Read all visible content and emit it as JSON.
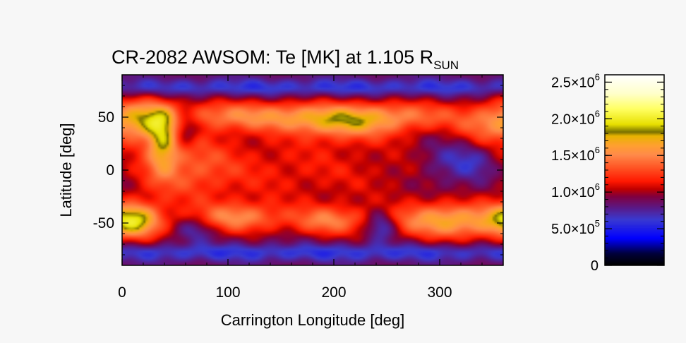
{
  "chart_data": {
    "type": "heatmap",
    "title": {
      "main": "CR-2082 AWSOM: Te [MK] at 1.105 R",
      "subscript": "SUN"
    },
    "xlabel": "Carrington Longitude [deg]",
    "ylabel": "Latitude [deg]",
    "xlim": [
      0,
      360
    ],
    "ylim": [
      -90,
      90
    ],
    "x_ticks": [
      {
        "value": 0,
        "label": "0"
      },
      {
        "value": 100,
        "label": "100"
      },
      {
        "value": 200,
        "label": "200"
      },
      {
        "value": 300,
        "label": "300"
      }
    ],
    "y_ticks": [
      {
        "value": 50,
        "label": "50"
      },
      {
        "value": 0,
        "label": "0"
      },
      {
        "value": -50,
        "label": "-50"
      }
    ],
    "colorbar": {
      "range": [
        0,
        2600000
      ],
      "ticks": [
        {
          "value": 2500000,
          "mantissa": "2.5",
          "exp": "6"
        },
        {
          "value": 2000000,
          "mantissa": "2.0",
          "exp": "6"
        },
        {
          "value": 1500000,
          "mantissa": "1.5",
          "exp": "6"
        },
        {
          "value": 1000000,
          "mantissa": "1.0",
          "exp": "6"
        },
        {
          "value": 500000,
          "mantissa": "5.0",
          "exp": "5"
        },
        {
          "value": 0,
          "mantissa": "0",
          "exp": ""
        }
      ],
      "times_sign": "×10",
      "colormap": [
        [
          0.0,
          "#000000"
        ],
        [
          0.06,
          "#00003a"
        ],
        [
          0.14,
          "#0000ff"
        ],
        [
          0.24,
          "#3a3ad0"
        ],
        [
          0.3,
          "#5a1a88"
        ],
        [
          0.36,
          "#800040"
        ],
        [
          0.4,
          "#c00000"
        ],
        [
          0.44,
          "#ff1800"
        ],
        [
          0.52,
          "#ff5a28"
        ],
        [
          0.58,
          "#ff8a4a"
        ],
        [
          0.63,
          "#ffa030"
        ],
        [
          0.68,
          "#e8b400"
        ],
        [
          0.7,
          "#787000"
        ],
        [
          0.74,
          "#e8e000"
        ],
        [
          0.82,
          "#ffff60"
        ],
        [
          0.9,
          "#ffffc8"
        ],
        [
          1.0,
          "#ffffff"
        ]
      ]
    },
    "values_note_free": true,
    "field": {
      "background": 870000,
      "features": [
        {
          "lon": 20,
          "lat": 48,
          "w": 22,
          "h": 14,
          "amp": 700000
        },
        {
          "lon": 38,
          "lat": 25,
          "w": 10,
          "h": 20,
          "amp": 600000
        },
        {
          "lon": 100,
          "lat": 52,
          "w": 45,
          "h": 10,
          "amp": 450000
        },
        {
          "lon": 170,
          "lat": 50,
          "w": 40,
          "h": 10,
          "amp": 380000
        },
        {
          "lon": 215,
          "lat": 45,
          "w": 35,
          "h": 12,
          "amp": 560000
        },
        {
          "lon": 275,
          "lat": 52,
          "w": 40,
          "h": 10,
          "amp": 420000
        },
        {
          "lon": 12,
          "lat": -48,
          "w": 18,
          "h": 12,
          "amp": 820000
        },
        {
          "lon": 110,
          "lat": -45,
          "w": 30,
          "h": 10,
          "amp": 560000
        },
        {
          "lon": 195,
          "lat": -48,
          "w": 25,
          "h": 10,
          "amp": 520000
        },
        {
          "lon": 310,
          "lat": -48,
          "w": 40,
          "h": 12,
          "amp": 780000
        },
        {
          "lon": 340,
          "lat": 40,
          "w": 20,
          "h": 15,
          "amp": 400000
        },
        {
          "lon": 150,
          "lat": 0,
          "w": 120,
          "h": 28,
          "amp": 260000
        },
        {
          "lon": 60,
          "lat": 5,
          "w": 30,
          "h": 25,
          "amp": 300000
        },
        {
          "lon": 60,
          "lat": 40,
          "w": 9,
          "h": 12,
          "amp": -380000
        },
        {
          "lon": 245,
          "lat": -52,
          "w": 10,
          "h": 10,
          "amp": -420000
        },
        {
          "lon": 330,
          "lat": 10,
          "w": 18,
          "h": 16,
          "amp": -300000
        },
        {
          "lon": 300,
          "lat": 5,
          "w": 15,
          "h": 15,
          "amp": -150000
        },
        {
          "lon": 70,
          "lat": -55,
          "w": 12,
          "h": 8,
          "amp": -250000
        },
        {
          "lon": 180,
          "lat": 78,
          "w": 360,
          "h": 6,
          "amp": -280000
        },
        {
          "lon": 180,
          "lat": -78,
          "w": 360,
          "h": 6,
          "amp": -280000
        }
      ]
    }
  }
}
